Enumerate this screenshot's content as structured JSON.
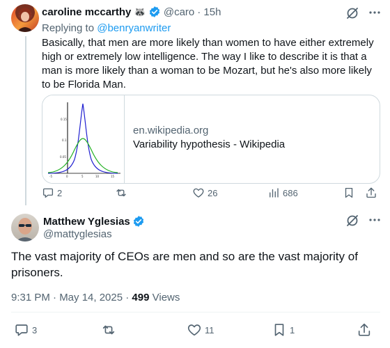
{
  "reply_tweet": {
    "author_name": "caroline mccarthy",
    "emoji": "🦝",
    "handle": "@caro",
    "time": "· 15h",
    "replying_prefix": "Replying to",
    "replying_to": "@benryanwriter",
    "body": "Basically, that men are more likely than women to have either extremely high or extremely low intelligence. The way I like to describe it is that a man is more likely than a woman to be Mozart, but he's also more likely to be Florida Man.",
    "card": {
      "domain": "en.wikipedia.org",
      "title": "Variability hypothesis - Wikipedia",
      "thumb_tick_labels": [
        "0.15",
        "0.1",
        "0.05",
        "-5",
        "0",
        "5",
        "10",
        "15"
      ]
    },
    "actions": {
      "replies": "2",
      "reposts": "",
      "likes": "26",
      "views": "686"
    }
  },
  "main_tweet": {
    "author_name": "Matthew Yglesias",
    "handle": "@mattyglesias",
    "body": "The vast majority of CEOs are men and so are the vast majority of prisoners.",
    "timestamp": "9:31 PM · May 14, 2025 ·",
    "views_count": "499",
    "views_label": "Views",
    "actions": {
      "replies": "3",
      "reposts": "",
      "likes": "11",
      "bookmarks": "1"
    }
  },
  "colors": {
    "accent": "#1d9bf0",
    "secondary_text": "#536471",
    "primary_text": "#0f1419",
    "border": "#cfd9de"
  }
}
